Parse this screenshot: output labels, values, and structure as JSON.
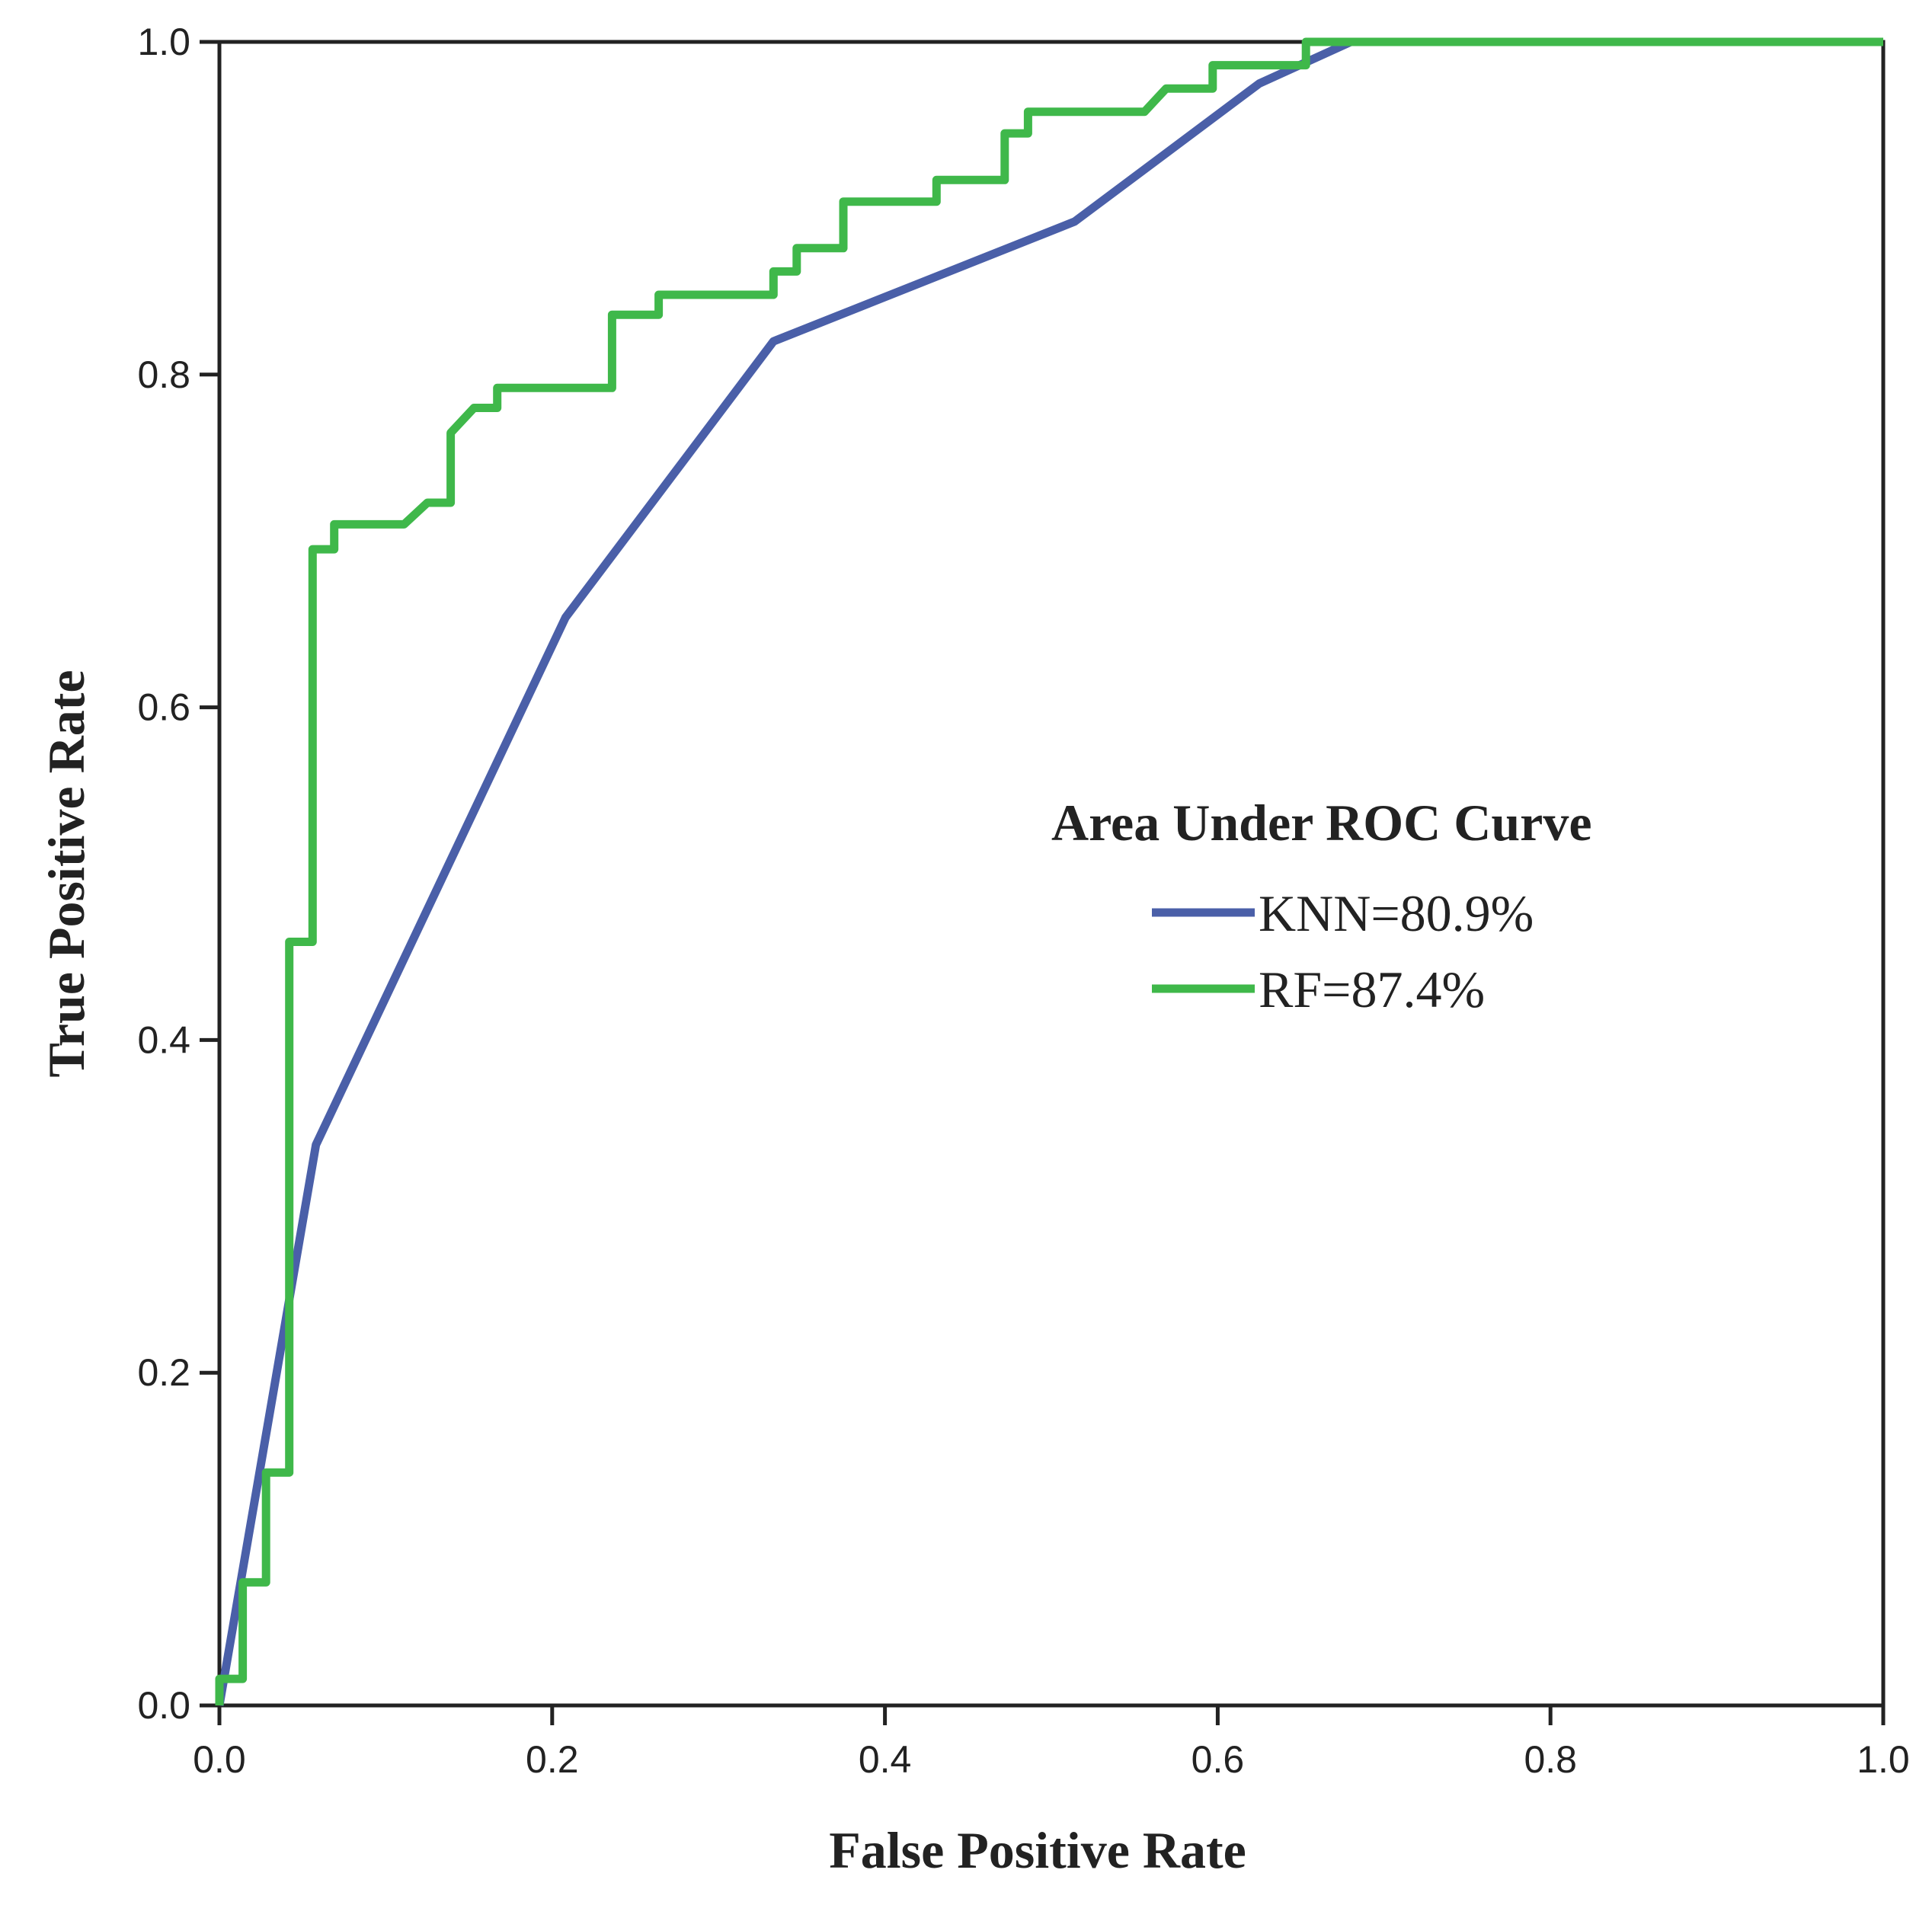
{
  "chart_data": {
    "type": "line",
    "title": "",
    "xlabel": "False Positive Rate",
    "ylabel": "True Positive Rate",
    "xlim": [
      0,
      1
    ],
    "ylim": [
      0,
      1
    ],
    "grid": false,
    "x_ticks": [
      "0.0",
      "0.2",
      "0.4",
      "0.6",
      "0.8",
      "1.0"
    ],
    "y_ticks": [
      "0.0",
      "0.2",
      "0.4",
      "0.6",
      "0.8",
      "1.0"
    ],
    "legend": {
      "title": "Area Under ROC Curve",
      "placement": "center-right",
      "entries": [
        "KNN=80.9%",
        "RF=87.4%"
      ]
    },
    "series": [
      {
        "name": "KNN=80.9%",
        "color": "#4a5fa8",
        "step": false,
        "points": [
          [
            0.0,
            0.0
          ],
          [
            0.058,
            0.337
          ],
          [
            0.208,
            0.654
          ],
          [
            0.333,
            0.82
          ],
          [
            0.514,
            0.892
          ],
          [
            0.625,
            0.975
          ],
          [
            0.68,
            1.0
          ],
          [
            1.0,
            1.0
          ]
        ]
      },
      {
        "name": "RF=87.4%",
        "color": "#3fb84a",
        "step": true,
        "points": [
          [
            0.0,
            0.0
          ],
          [
            0.0,
            0.016
          ],
          [
            0.014,
            0.016
          ],
          [
            0.014,
            0.074
          ],
          [
            0.028,
            0.074
          ],
          [
            0.028,
            0.14
          ],
          [
            0.042,
            0.14
          ],
          [
            0.042,
            0.459
          ],
          [
            0.056,
            0.459
          ],
          [
            0.056,
            0.695
          ],
          [
            0.069,
            0.695
          ],
          [
            0.069,
            0.71
          ],
          [
            0.111,
            0.71
          ],
          [
            0.125,
            0.723
          ],
          [
            0.139,
            0.723
          ],
          [
            0.139,
            0.765
          ],
          [
            0.153,
            0.78
          ],
          [
            0.167,
            0.78
          ],
          [
            0.167,
            0.792
          ],
          [
            0.236,
            0.792
          ],
          [
            0.236,
            0.836
          ],
          [
            0.264,
            0.836
          ],
          [
            0.264,
            0.848
          ],
          [
            0.333,
            0.848
          ],
          [
            0.333,
            0.862
          ],
          [
            0.347,
            0.862
          ],
          [
            0.347,
            0.876
          ],
          [
            0.375,
            0.876
          ],
          [
            0.375,
            0.904
          ],
          [
            0.431,
            0.904
          ],
          [
            0.431,
            0.917
          ],
          [
            0.472,
            0.917
          ],
          [
            0.472,
            0.945
          ],
          [
            0.486,
            0.945
          ],
          [
            0.486,
            0.958
          ],
          [
            0.556,
            0.958
          ],
          [
            0.569,
            0.972
          ],
          [
            0.597,
            0.972
          ],
          [
            0.597,
            0.986
          ],
          [
            0.653,
            0.986
          ],
          [
            0.653,
            1.0
          ],
          [
            1.0,
            1.0
          ]
        ]
      }
    ]
  }
}
